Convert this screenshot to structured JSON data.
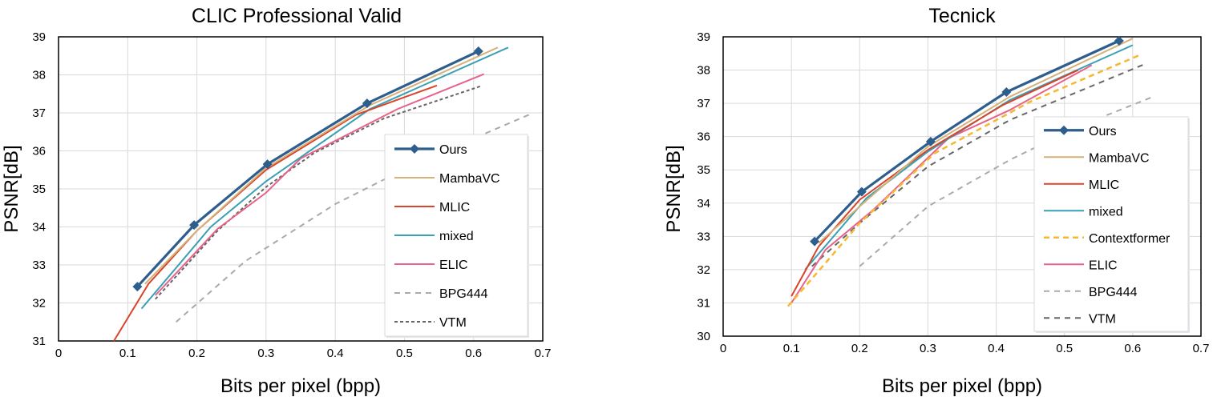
{
  "chart_data": [
    {
      "type": "line",
      "title": "CLIC Professional Valid",
      "xlabel": "Bits per pixel (bpp)",
      "ylabel": "PSNR[dB]",
      "xlim": [
        0,
        0.7
      ],
      "ylim": [
        31,
        39
      ],
      "xticks": [
        "0",
        "0.1",
        "0.2",
        "0.3",
        "0.4",
        "0.5",
        "0.6",
        "0.7"
      ],
      "yticks": [
        "31",
        "32",
        "33",
        "34",
        "35",
        "36",
        "37",
        "38",
        "39"
      ],
      "grid": true,
      "legend": "bottom-right",
      "series": [
        {
          "name": "Ours",
          "color": "#2E5E8E",
          "style": "solid-marker",
          "points": [
            [
              0.114,
              32.43
            ],
            [
              0.196,
              34.05
            ],
            [
              0.302,
              35.65
            ],
            [
              0.446,
              37.25
            ],
            [
              0.607,
              38.62
            ]
          ]
        },
        {
          "name": "MambaVC",
          "color": "#D4B27A",
          "style": "solid",
          "points": [
            [
              0.125,
              32.5
            ],
            [
              0.2,
              33.9
            ],
            [
              0.3,
              35.55
            ],
            [
              0.45,
              37.2
            ],
            [
              0.635,
              38.72
            ]
          ]
        },
        {
          "name": "MLIC",
          "color": "#D9452B",
          "style": "solid",
          "points": [
            [
              0.08,
              31.0
            ],
            [
              0.13,
              32.5
            ],
            [
              0.2,
              33.9
            ],
            [
              0.3,
              35.5
            ],
            [
              0.43,
              36.95
            ],
            [
              0.547,
              37.72
            ]
          ]
        },
        {
          "name": "mixed",
          "color": "#3AA0B5",
          "style": "solid",
          "points": [
            [
              0.12,
              31.85
            ],
            [
              0.22,
              34.0
            ],
            [
              0.3,
              35.2
            ],
            [
              0.45,
              37.1
            ],
            [
              0.65,
              38.72
            ]
          ]
        },
        {
          "name": "ELIC",
          "color": "#E8638A",
          "style": "solid",
          "points": [
            [
              0.14,
              32.2
            ],
            [
              0.23,
              33.95
            ],
            [
              0.3,
              34.9
            ],
            [
              0.35,
              35.8
            ],
            [
              0.49,
              37.1
            ],
            [
              0.615,
              38.02
            ]
          ]
        },
        {
          "name": "BPG444",
          "color": "#AAAAAA",
          "style": "dash",
          "points": [
            [
              0.17,
              31.5
            ],
            [
              0.27,
              33.1
            ],
            [
              0.4,
              34.6
            ],
            [
              0.52,
              35.7
            ],
            [
              0.68,
              36.95
            ]
          ]
        },
        {
          "name": "VTM",
          "color": "#666666",
          "style": "dot",
          "points": [
            [
              0.14,
              32.1
            ],
            [
              0.23,
              33.9
            ],
            [
              0.3,
              35.05
            ],
            [
              0.37,
              35.95
            ],
            [
              0.47,
              36.85
            ],
            [
              0.61,
              37.7
            ]
          ]
        }
      ]
    },
    {
      "type": "line",
      "title": "Tecnick",
      "xlabel": "Bits per pixel (bpp)",
      "ylabel": "PSNR[dB]",
      "xlim": [
        0,
        0.7
      ],
      "ylim": [
        30,
        39
      ],
      "xticks": [
        "0",
        "0.1",
        "0.2",
        "0.3",
        "0.4",
        "0.5",
        "0.6",
        "0.7"
      ],
      "yticks": [
        "30",
        "31",
        "32",
        "33",
        "34",
        "35",
        "36",
        "37",
        "38",
        "39"
      ],
      "grid": true,
      "legend": "bottom-right",
      "series": [
        {
          "name": "Ours",
          "color": "#2E5E8E",
          "style": "solid-marker",
          "points": [
            [
              0.134,
              32.85
            ],
            [
              0.203,
              34.34
            ],
            [
              0.304,
              35.85
            ],
            [
              0.415,
              37.34
            ],
            [
              0.58,
              38.88
            ]
          ]
        },
        {
          "name": "MambaVC",
          "color": "#D4B27A",
          "style": "solid",
          "points": [
            [
              0.14,
              32.8
            ],
            [
              0.2,
              33.9
            ],
            [
              0.3,
              35.7
            ],
            [
              0.42,
              37.2
            ],
            [
              0.6,
              38.95
            ]
          ]
        },
        {
          "name": "MLIC",
          "color": "#D9452B",
          "style": "solid",
          "points": [
            [
              0.1,
              31.2
            ],
            [
              0.14,
              32.7
            ],
            [
              0.2,
              34.1
            ],
            [
              0.3,
              35.6
            ],
            [
              0.41,
              36.95
            ],
            [
              0.52,
              38.0
            ]
          ]
        },
        {
          "name": "mixed",
          "color": "#3AA0B5",
          "style": "solid",
          "points": [
            [
              0.12,
              32.0
            ],
            [
              0.21,
              34.15
            ],
            [
              0.3,
              35.55
            ],
            [
              0.42,
              37.1
            ],
            [
              0.6,
              38.75
            ]
          ]
        },
        {
          "name": "Contextformer",
          "color": "#F5B82E",
          "style": "dash-bold",
          "points": [
            [
              0.095,
              30.9
            ],
            [
              0.15,
              32.2
            ],
            [
              0.2,
              33.4
            ],
            [
              0.31,
              35.5
            ],
            [
              0.45,
              37.05
            ],
            [
              0.61,
              38.45
            ]
          ]
        },
        {
          "name": "ELIC",
          "color": "#E8638A",
          "style": "solid",
          "points": [
            [
              0.1,
              31.0
            ],
            [
              0.15,
              32.6
            ],
            [
              0.22,
              33.8
            ],
            [
              0.33,
              35.95
            ],
            [
              0.42,
              36.8
            ],
            [
              0.54,
              38.15
            ]
          ]
        },
        {
          "name": "BPG444",
          "color": "#AAAAAA",
          "style": "dash",
          "points": [
            [
              0.2,
              32.1
            ],
            [
              0.3,
              33.9
            ],
            [
              0.42,
              35.3
            ],
            [
              0.52,
              36.3
            ],
            [
              0.63,
              37.2
            ]
          ]
        },
        {
          "name": "VTM",
          "color": "#666666",
          "style": "dash",
          "points": [
            [
              0.13,
              32.1
            ],
            [
              0.2,
              33.4
            ],
            [
              0.3,
              35.1
            ],
            [
              0.42,
              36.5
            ],
            [
              0.62,
              38.2
            ]
          ]
        }
      ]
    }
  ]
}
